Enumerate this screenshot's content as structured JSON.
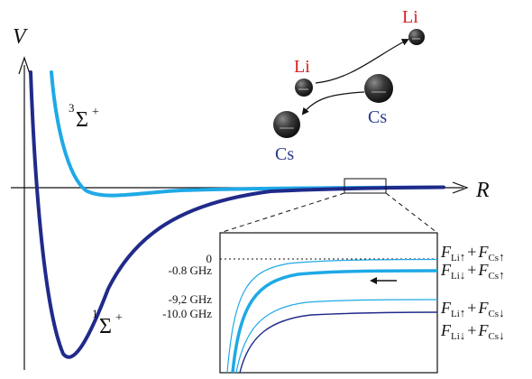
{
  "axes": {
    "y_label": "V",
    "x_label": "R"
  },
  "curves": {
    "triplet": {
      "label_sup": "3",
      "label_main": "Σ",
      "label_plus": "+",
      "color": "#1fa9e6"
    },
    "singlet": {
      "label_sup": "1",
      "label_main": "Σ",
      "label_plus": "+",
      "color": "#202a8a"
    }
  },
  "atoms": {
    "li_top": "Li",
    "li_mid": "Li",
    "cs_mid": "Cs",
    "cs_bottom": "Cs",
    "li_color": "#d42020",
    "cs_color": "#273a8c"
  },
  "inset": {
    "tick_labels": [
      "0",
      "-0.8 GHz",
      "-9,2 GHz",
      "-10.0 GHz"
    ],
    "states": [
      {
        "f1": "F",
        "s1": "Li",
        "a1": "↑",
        "plus": "+",
        "f2": "F",
        "s2": "Cs",
        "a2": "↑"
      },
      {
        "f1": "F",
        "s1": "Li",
        "a1": "↓",
        "plus": "+",
        "f2": "F",
        "s2": "Cs",
        "a2": "↑"
      },
      {
        "f1": "F",
        "s1": "Li",
        "a1": "↑",
        "plus": "+",
        "f2": "F",
        "s2": "Cs",
        "a2": "↓"
      },
      {
        "f1": "F",
        "s1": "Li",
        "a1": "↓",
        "plus": "+",
        "f2": "F",
        "s2": "Cs",
        "a2": "↓"
      }
    ]
  }
}
